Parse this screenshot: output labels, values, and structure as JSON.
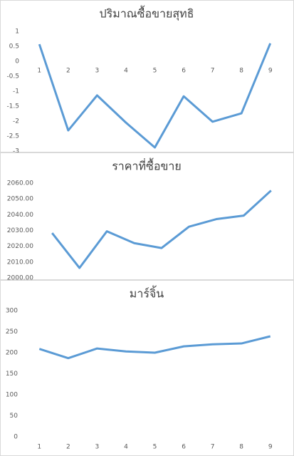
{
  "chart_data": [
    {
      "type": "line",
      "title": "ปริมาณซื้อขายสุทธิ",
      "categories": [
        "1",
        "2",
        "3",
        "4",
        "5",
        "6",
        "7",
        "8",
        "9"
      ],
      "values": [
        0.57,
        -2.31,
        -1.14,
        -2.05,
        -2.88,
        -1.17,
        -2.02,
        -1.74,
        0.6
      ],
      "color": "#5b9bd5",
      "ylim": [
        -3,
        1
      ],
      "yticks": [
        -3,
        -2.5,
        -2,
        -1.5,
        -1,
        -0.5,
        0,
        0.5,
        1
      ],
      "grid": false
    },
    {
      "type": "line",
      "title": "ราคาที่ซื้อขาย",
      "values": [
        2028.4,
        2006.3,
        2029.5,
        2022,
        2018.9,
        2032.4,
        2037.2,
        2039.4,
        2055.3
      ],
      "color": "#5b9bd5",
      "ylim": [
        2000,
        2060
      ],
      "yticks": [
        {
          "value": 2000,
          "label": "2000.00"
        },
        {
          "value": 2010,
          "label": "2010.00"
        },
        {
          "value": 2020,
          "label": "2020.00"
        },
        {
          "value": 2030,
          "label": "2030.00"
        },
        {
          "value": 2040,
          "label": "2040.00"
        },
        {
          "value": 2050,
          "label": "2050.00"
        },
        {
          "value": 2060,
          "label": "2060.00"
        }
      ],
      "grid": false
    },
    {
      "type": "line",
      "title": "มาร์จิ้น",
      "categories": [
        "1",
        "2",
        "3",
        "4",
        "5",
        "6",
        "7",
        "8",
        "9"
      ],
      "values": [
        209,
        187,
        210,
        203,
        200,
        215,
        220,
        222,
        239
      ],
      "color": "#5b9bd5",
      "ylim": [
        0,
        300
      ],
      "yticks": [
        0,
        50,
        100,
        150,
        200,
        250,
        300
      ],
      "grid": false
    }
  ]
}
